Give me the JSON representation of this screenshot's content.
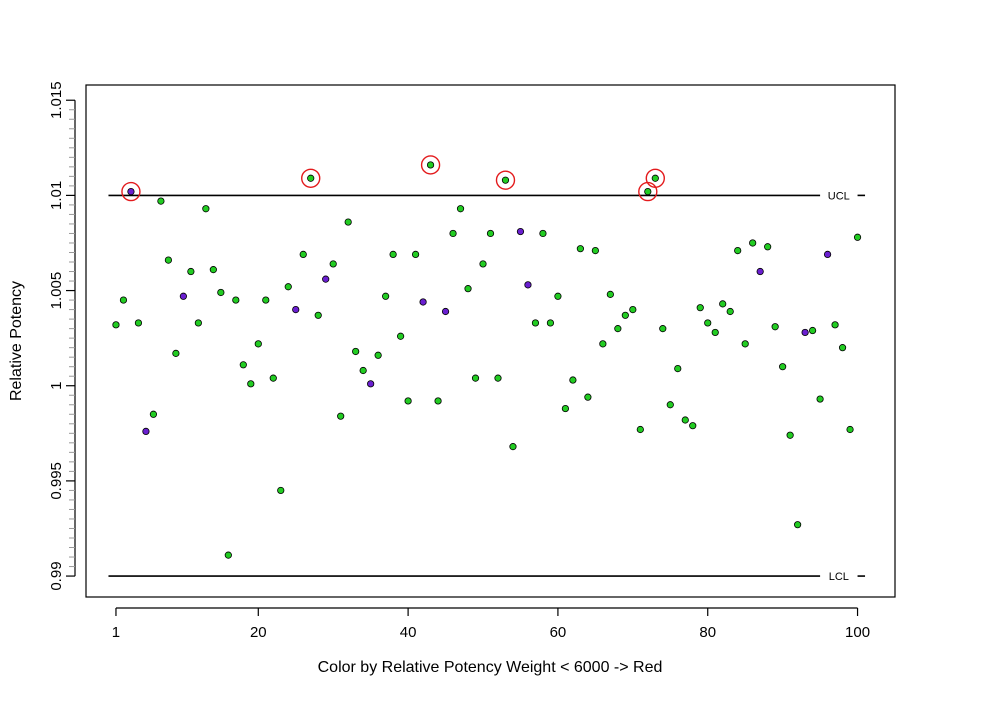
{
  "chart_data": {
    "type": "scatter",
    "xlabel": "Color by Relative Potency Weight < 6000 -> Red",
    "ylabel": "Relative Potency",
    "xlim": [
      -3,
      105
    ],
    "ylim": [
      0.9889,
      1.0158
    ],
    "x_ticks": [
      {
        "value": 1,
        "label": "1"
      },
      {
        "value": 20,
        "label": "20"
      },
      {
        "value": 40,
        "label": "40"
      },
      {
        "value": 60,
        "label": "60"
      },
      {
        "value": 80,
        "label": "80"
      },
      {
        "value": 100,
        "label": "100"
      }
    ],
    "y_ticks": [
      {
        "value": 0.99,
        "label": "0.99"
      },
      {
        "value": 0.995,
        "label": "0.995"
      },
      {
        "value": 1.0,
        "label": "1"
      },
      {
        "value": 1.005,
        "label": "1.005"
      },
      {
        "value": 1.01,
        "label": "1.01"
      },
      {
        "value": 1.015,
        "label": "1.015"
      }
    ],
    "grid": false,
    "control_limits": [
      {
        "label": "UCL",
        "value": 1.01
      },
      {
        "label": "LCL",
        "value": 0.99
      }
    ],
    "highlight_color": "#e31a1c",
    "series": [
      {
        "color": "#22cc22",
        "points": [
          [
            1,
            1.0032
          ],
          [
            2,
            1.0045
          ],
          [
            4,
            1.0033
          ],
          [
            6,
            0.9985
          ],
          [
            7,
            1.0097
          ],
          [
            8,
            1.0066
          ],
          [
            9,
            1.0017
          ],
          [
            11,
            1.006
          ],
          [
            12,
            1.0033
          ],
          [
            13,
            1.0093
          ],
          [
            14,
            1.0061
          ],
          [
            15,
            1.0049
          ],
          [
            16,
            0.9911
          ],
          [
            17,
            1.0045
          ],
          [
            18,
            1.0011
          ],
          [
            19,
            1.0001
          ],
          [
            20,
            1.0022
          ],
          [
            21,
            1.0045
          ],
          [
            22,
            1.0004
          ],
          [
            23,
            0.9945
          ],
          [
            24,
            1.0052
          ],
          [
            26,
            1.0069
          ],
          [
            27,
            1.0109
          ],
          [
            28,
            1.0037
          ],
          [
            30,
            1.0064
          ],
          [
            31,
            0.9984
          ],
          [
            32,
            1.0086
          ],
          [
            33,
            1.0018
          ],
          [
            34,
            1.0008
          ],
          [
            36,
            1.0016
          ],
          [
            37,
            1.0047
          ],
          [
            38,
            1.0069
          ],
          [
            39,
            1.0026
          ],
          [
            40,
            0.9992
          ],
          [
            41,
            1.0069
          ],
          [
            43,
            1.0116
          ],
          [
            44,
            0.9992
          ],
          [
            46,
            1.008
          ],
          [
            47,
            1.0093
          ],
          [
            48,
            1.0051
          ],
          [
            49,
            1.0004
          ],
          [
            50,
            1.0064
          ],
          [
            51,
            1.008
          ],
          [
            52,
            1.0004
          ],
          [
            53,
            1.0108
          ],
          [
            54,
            0.9968
          ],
          [
            57,
            1.0033
          ],
          [
            58,
            1.008
          ],
          [
            59,
            1.0033
          ],
          [
            60,
            1.0047
          ],
          [
            61,
            0.9988
          ],
          [
            62,
            1.0003
          ],
          [
            63,
            1.0072
          ],
          [
            64,
            0.9994
          ],
          [
            65,
            1.0071
          ],
          [
            66,
            1.0022
          ],
          [
            67,
            1.0048
          ],
          [
            68,
            1.003
          ],
          [
            69,
            1.0037
          ],
          [
            70,
            1.004
          ],
          [
            71,
            0.9977
          ],
          [
            72,
            1.0102
          ],
          [
            73,
            1.0109
          ],
          [
            74,
            1.003
          ],
          [
            75,
            0.999
          ],
          [
            76,
            1.0009
          ],
          [
            77,
            0.9982
          ],
          [
            78,
            0.9979
          ],
          [
            79,
            1.0041
          ],
          [
            80,
            1.0033
          ],
          [
            81,
            1.0028
          ],
          [
            82,
            1.0043
          ],
          [
            83,
            1.0039
          ],
          [
            84,
            1.0071
          ],
          [
            85,
            1.0022
          ],
          [
            86,
            1.0075
          ],
          [
            88,
            1.0073
          ],
          [
            89,
            1.0031
          ],
          [
            90,
            1.001
          ],
          [
            91,
            0.9974
          ],
          [
            92,
            0.9927
          ],
          [
            94,
            1.0029
          ],
          [
            95,
            0.9993
          ],
          [
            97,
            1.0032
          ],
          [
            98,
            1.002
          ],
          [
            99,
            0.9977
          ],
          [
            100,
            1.0078
          ]
        ]
      },
      {
        "color": "#6a1fd0",
        "points": [
          [
            3,
            1.0102
          ],
          [
            5,
            0.9976
          ],
          [
            10,
            1.0047
          ],
          [
            25,
            1.004
          ],
          [
            29,
            1.0056
          ],
          [
            35,
            1.0001
          ],
          [
            42,
            1.0044
          ],
          [
            45,
            1.0039
          ],
          [
            55,
            1.0081
          ],
          [
            56,
            1.0053
          ],
          [
            87,
            1.006
          ],
          [
            93,
            1.0028
          ],
          [
            96,
            1.0069
          ]
        ]
      }
    ],
    "highlighted_points": [
      [
        3,
        1.0102
      ],
      [
        27,
        1.0109
      ],
      [
        43,
        1.0116
      ],
      [
        53,
        1.0108
      ],
      [
        72,
        1.0102
      ],
      [
        73,
        1.0109
      ]
    ]
  }
}
